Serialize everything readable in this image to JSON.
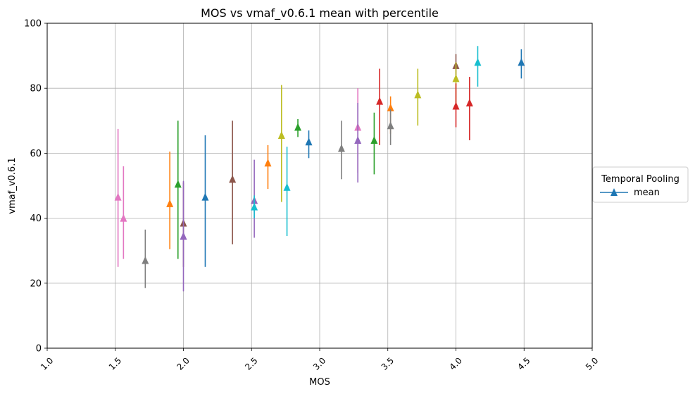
{
  "chart_data": {
    "type": "scatter",
    "title": "MOS vs vmaf_v0.6.1 mean with percentile",
    "xlabel": "MOS",
    "ylabel": "vmaf_v0.6.1",
    "xlim": [
      1.0,
      5.0
    ],
    "ylim": [
      0,
      100
    ],
    "x_ticks": [
      "1.0",
      "1.5",
      "2.0",
      "2.5",
      "3.0",
      "3.5",
      "4.0",
      "4.5",
      "5.0"
    ],
    "y_ticks": [
      "0",
      "20",
      "40",
      "60",
      "80",
      "100"
    ],
    "grid": true,
    "legend": {
      "title": "Temporal Pooling",
      "placement": "right",
      "entries": [
        {
          "label": "mean",
          "color": "#1f77b4"
        }
      ]
    },
    "points": [
      {
        "x": 1.52,
        "y": 46.5,
        "low": 25.0,
        "high": 67.5,
        "color": "#e377c2"
      },
      {
        "x": 1.56,
        "y": 40.0,
        "low": 27.5,
        "high": 56.0,
        "color": "#e377c2"
      },
      {
        "x": 1.72,
        "y": 27.0,
        "low": 18.5,
        "high": 36.5,
        "color": "#7f7f7f"
      },
      {
        "x": 1.9,
        "y": 44.5,
        "low": 30.5,
        "high": 60.5,
        "color": "#ff7f0e"
      },
      {
        "x": 1.96,
        "y": 50.5,
        "low": 27.5,
        "high": 70.0,
        "color": "#2ca02c"
      },
      {
        "x": 2.0,
        "y": 38.5,
        "low": 25.0,
        "high": 51.0,
        "color": "#8c564b"
      },
      {
        "x": 2.0,
        "y": 34.5,
        "low": 17.5,
        "high": 51.5,
        "color": "#9467bd"
      },
      {
        "x": 2.16,
        "y": 46.5,
        "low": 25.0,
        "high": 65.5,
        "color": "#1f77b4"
      },
      {
        "x": 2.36,
        "y": 52.0,
        "low": 32.0,
        "high": 70.0,
        "color": "#8c564b"
      },
      {
        "x": 2.52,
        "y": 45.5,
        "low": 34.0,
        "high": 58.0,
        "color": "#9467bd"
      },
      {
        "x": 2.52,
        "y": 43.5,
        "low": 40.0,
        "high": 47.0,
        "color": "#17becf"
      },
      {
        "x": 2.62,
        "y": 57.0,
        "low": 49.0,
        "high": 62.5,
        "color": "#ff7f0e"
      },
      {
        "x": 2.72,
        "y": 65.5,
        "low": 45.0,
        "high": 81.0,
        "color": "#bcbd22"
      },
      {
        "x": 2.76,
        "y": 49.5,
        "low": 34.5,
        "high": 62.0,
        "color": "#17becf"
      },
      {
        "x": 2.84,
        "y": 68.0,
        "low": 65.0,
        "high": 70.5,
        "color": "#2ca02c"
      },
      {
        "x": 2.92,
        "y": 63.5,
        "low": 58.5,
        "high": 67.0,
        "color": "#1f77b4"
      },
      {
        "x": 3.16,
        "y": 61.5,
        "low": 52.0,
        "high": 70.0,
        "color": "#7f7f7f"
      },
      {
        "x": 3.28,
        "y": 68.0,
        "low": 54.0,
        "high": 80.0,
        "color": "#e377c2"
      },
      {
        "x": 3.28,
        "y": 64.0,
        "low": 51.0,
        "high": 75.5,
        "color": "#9467bd"
      },
      {
        "x": 3.4,
        "y": 64.0,
        "low": 53.5,
        "high": 72.5,
        "color": "#2ca02c"
      },
      {
        "x": 3.44,
        "y": 76.0,
        "low": 62.5,
        "high": 86.0,
        "color": "#d62728"
      },
      {
        "x": 3.52,
        "y": 74.0,
        "low": 66.0,
        "high": 77.5,
        "color": "#ff7f0e"
      },
      {
        "x": 3.52,
        "y": 68.5,
        "low": 62.5,
        "high": 73.5,
        "color": "#7f7f7f"
      },
      {
        "x": 3.72,
        "y": 78.0,
        "low": 68.5,
        "high": 86.0,
        "color": "#bcbd22"
      },
      {
        "x": 4.0,
        "y": 87.0,
        "low": 82.0,
        "high": 90.5,
        "color": "#8c564b"
      },
      {
        "x": 4.0,
        "y": 83.0,
        "low": 75.0,
        "high": 88.0,
        "color": "#bcbd22"
      },
      {
        "x": 4.0,
        "y": 74.5,
        "low": 68.0,
        "high": 81.5,
        "color": "#d62728"
      },
      {
        "x": 4.1,
        "y": 75.5,
        "low": 64.0,
        "high": 83.5,
        "color": "#d62728"
      },
      {
        "x": 4.16,
        "y": 88.0,
        "low": 80.5,
        "high": 93.0,
        "color": "#17becf"
      },
      {
        "x": 4.48,
        "y": 88.0,
        "low": 83.0,
        "high": 92.0,
        "color": "#1f77b4"
      }
    ]
  }
}
